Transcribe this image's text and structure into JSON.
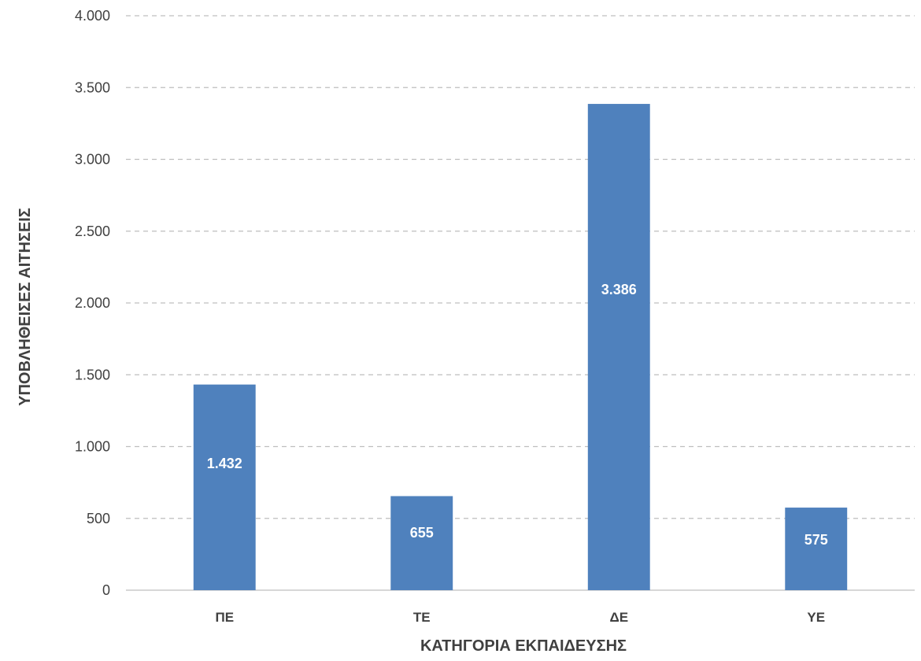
{
  "chart_data": {
    "type": "bar",
    "title": "",
    "xlabel": "ΚΑΤΗΓΟΡΙΑ ΕΚΠΑΙΔΕΥΣΗΣ",
    "ylabel": "ΥΠΟΒΛΗΘΕΙΣΕΣ ΑΙΤΗΣΕΙΣ",
    "categories": [
      "ΠΕ",
      "ΤΕ",
      "ΔΕ",
      "ΥΕ"
    ],
    "values": [
      1432,
      655,
      3386,
      575
    ],
    "data_labels": [
      "1.432",
      "655",
      "3.386",
      "575"
    ],
    "ylim": [
      0,
      4000
    ],
    "yticks": [
      0,
      500,
      1000,
      1500,
      2000,
      2500,
      3000,
      3500,
      4000
    ],
    "ytick_labels": [
      "0",
      "500",
      "1.000",
      "1.500",
      "2.000",
      "2.500",
      "3.000",
      "3.500",
      "4.000"
    ],
    "grid": true,
    "legend": false,
    "colors": {
      "bar": "#4f81bd",
      "grid": "#bfbfbf",
      "text": "#404040",
      "data_label": "#ffffff"
    }
  }
}
